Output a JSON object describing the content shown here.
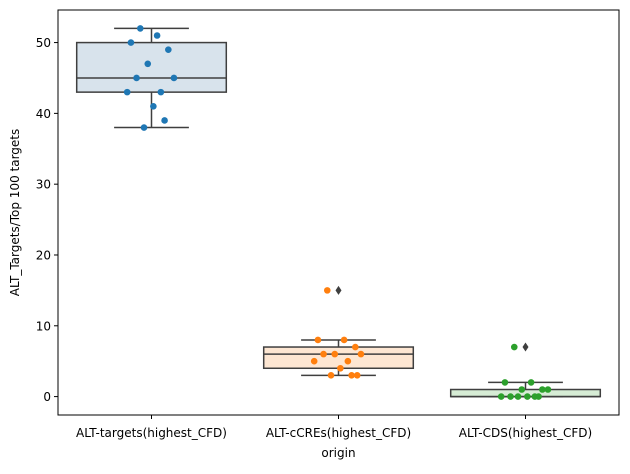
{
  "chart_data": {
    "type": "box",
    "xlabel": "origin",
    "ylabel": "ALT_Targets/Top 100 targets",
    "ylim": [
      -2.6,
      54.6
    ],
    "yticks": [
      0,
      10,
      20,
      30,
      40,
      50
    ],
    "categories": [
      "ALT-targets(highest_CFD)",
      "ALT-cCREs(highest_CFD)",
      "ALT-CDS(highest_CFD)"
    ],
    "boxes": [
      {
        "category": "ALT-targets(highest_CFD)",
        "q1": 43,
        "median": 45,
        "q3": 50,
        "whisker_low": 38,
        "whisker_high": 52,
        "outliers": [],
        "box_color": "#d8e3ec",
        "point_color": "#1f77b4"
      },
      {
        "category": "ALT-cCREs(highest_CFD)",
        "q1": 4,
        "median": 6,
        "q3": 7,
        "whisker_low": 3,
        "whisker_high": 8,
        "outliers": [
          15
        ],
        "box_color": "#fde6d2",
        "point_color": "#ff7f0e"
      },
      {
        "category": "ALT-CDS(highest_CFD)",
        "q1": 0,
        "median": 0,
        "q3": 1,
        "whisker_low": 0,
        "whisker_high": 2,
        "outliers": [
          7
        ],
        "box_color": "#d6ecd5",
        "point_color": "#2ca02c"
      }
    ],
    "points": [
      {
        "category": "ALT-targets(highest_CFD)",
        "values": [
          52,
          51,
          50,
          49,
          47,
          45,
          45,
          43,
          43,
          41,
          39,
          38
        ]
      },
      {
        "category": "ALT-cCREs(highest_CFD)",
        "values": [
          15,
          8,
          8,
          7,
          6,
          6,
          6,
          5,
          5,
          4,
          3,
          3,
          3
        ]
      },
      {
        "category": "ALT-CDS(highest_CFD)",
        "values": [
          7,
          2,
          2,
          1,
          1,
          1,
          0,
          0,
          0,
          0,
          0,
          0
        ]
      }
    ],
    "grid": false,
    "legend": "none"
  }
}
